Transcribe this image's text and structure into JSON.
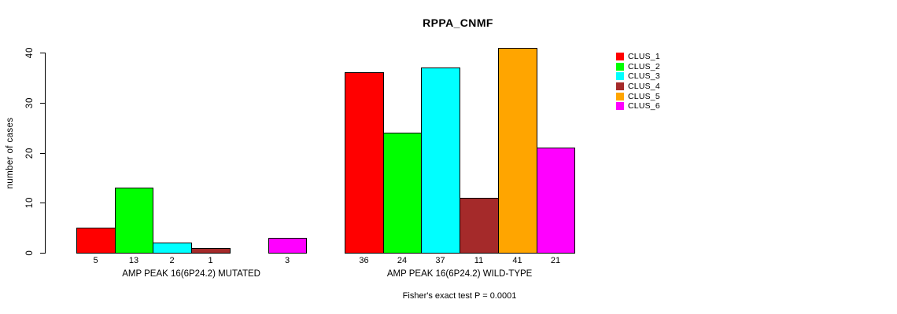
{
  "chart_data": {
    "type": "bar",
    "title": "RPPA_CNMF",
    "ylabel": "number of cases",
    "ylim": [
      0,
      41
    ],
    "yticks": [
      0,
      10,
      20,
      30,
      40
    ],
    "grid": false,
    "legend_position": "top-right",
    "annotation": "Fisher's exact test P = 0.0001",
    "groups": [
      {
        "label": "AMP PEAK 16(6P24.2) MUTATED",
        "bar_labels": [
          "5",
          "13",
          "2",
          "1",
          "",
          "3"
        ]
      },
      {
        "label": "AMP PEAK 16(6P24.2) WILD-TYPE",
        "bar_labels": [
          "36",
          "24",
          "37",
          "11",
          "41",
          "21"
        ]
      }
    ],
    "series": [
      {
        "name": "CLUS_1",
        "color": "#FF0000",
        "values": [
          5,
          36
        ]
      },
      {
        "name": "CLUS_2",
        "color": "#00FF00",
        "values": [
          13,
          24
        ]
      },
      {
        "name": "CLUS_3",
        "color": "#00FFFF",
        "values": [
          2,
          37
        ]
      },
      {
        "name": "CLUS_4",
        "color": "#A52A2A",
        "values": [
          1,
          11
        ]
      },
      {
        "name": "CLUS_5",
        "color": "#FFA500",
        "values": [
          0,
          41
        ]
      },
      {
        "name": "CLUS_6",
        "color": "#FF00FF",
        "values": [
          3,
          21
        ]
      }
    ]
  }
}
